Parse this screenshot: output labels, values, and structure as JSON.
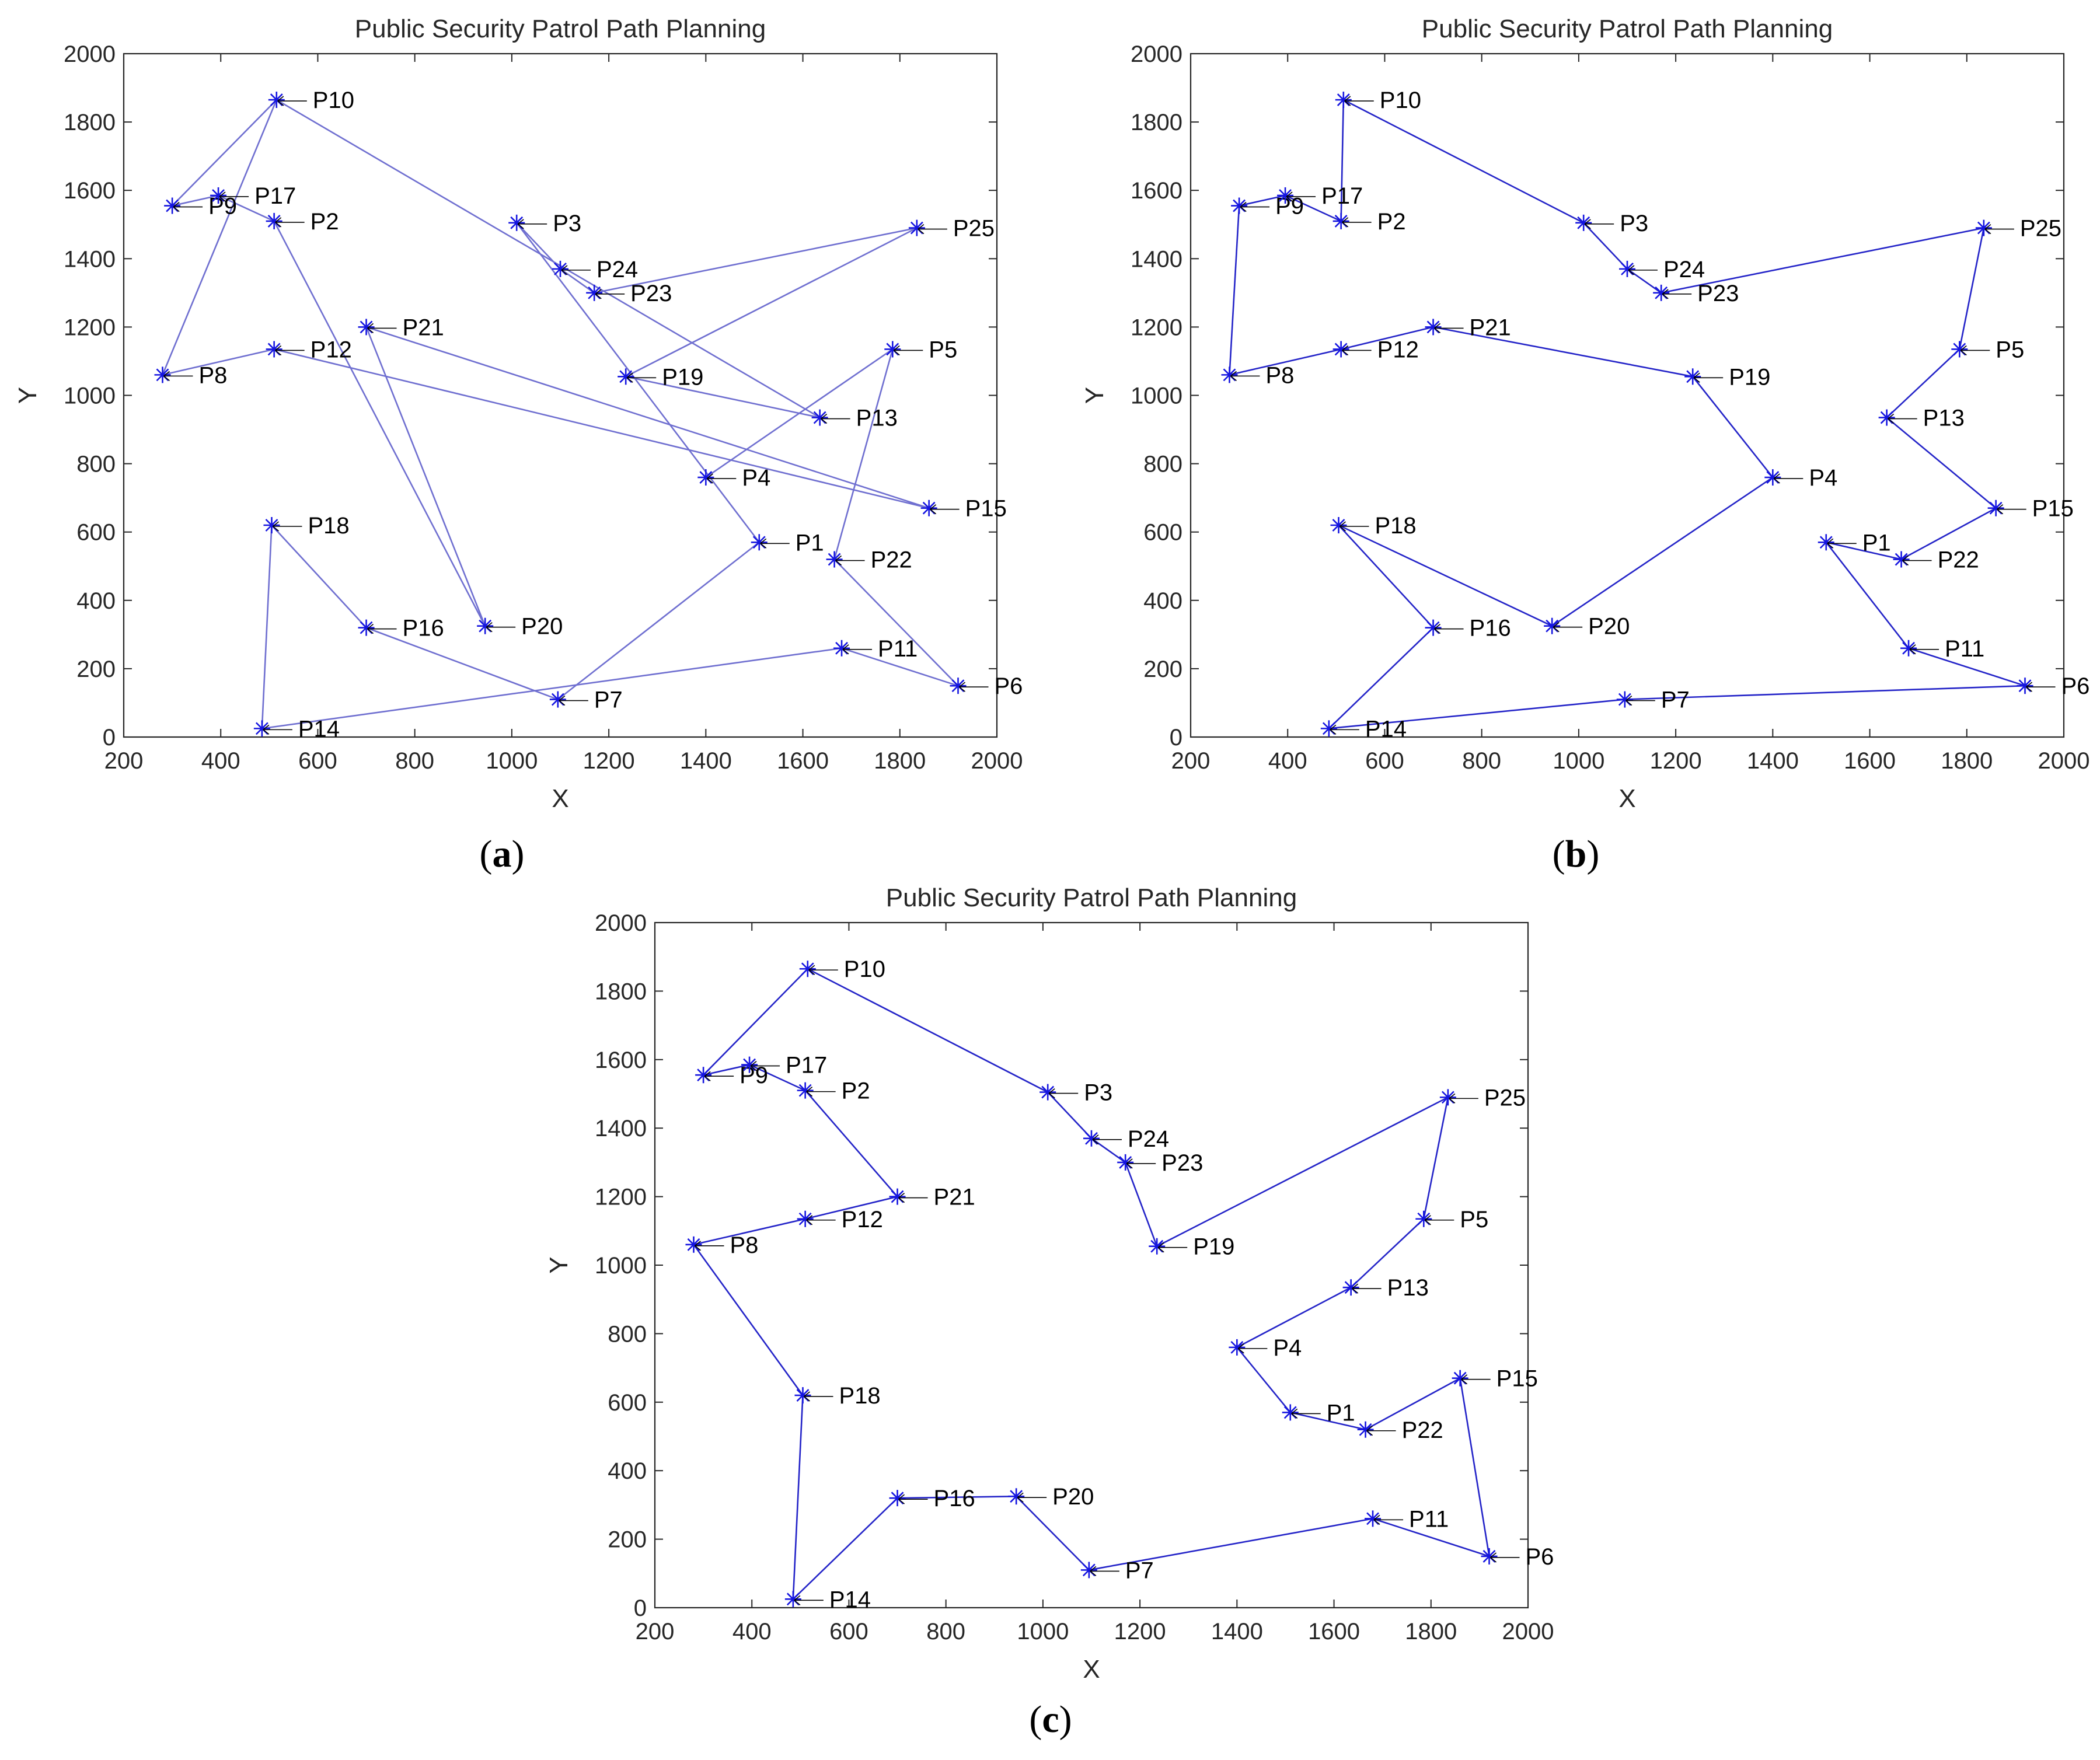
{
  "chart_data": [
    {
      "id": "a",
      "panel_label": "a",
      "type": "line",
      "title": "Public Security Patrol Path Planning",
      "xlabel": "X",
      "ylabel": "Y",
      "xlim": [
        200,
        2000
      ],
      "ylim": [
        0,
        2000
      ],
      "xticks": [
        200,
        400,
        600,
        800,
        1000,
        1200,
        1400,
        1600,
        1800,
        2000
      ],
      "yticks": [
        0,
        200,
        400,
        600,
        800,
        1000,
        1200,
        1400,
        1600,
        1800,
        2000
      ],
      "route": [
        "P10",
        "P9",
        "P17",
        "P2",
        "P20",
        "P21",
        "P15",
        "P12",
        "P8",
        "P10",
        "P13",
        "P19",
        "P25",
        "P23",
        "P24",
        "P3",
        "P1",
        "P7",
        "P16",
        "P18",
        "P14",
        "P11",
        "P6",
        "P22",
        "P5",
        "P4"
      ],
      "route_color": "#6f6fd0"
    },
    {
      "id": "b",
      "panel_label": "b",
      "type": "line",
      "title": "Public Security Patrol Path Planning",
      "xlabel": "X",
      "ylabel": "Y",
      "xlim": [
        200,
        2000
      ],
      "ylim": [
        0,
        2000
      ],
      "xticks": [
        200,
        400,
        600,
        800,
        1000,
        1200,
        1400,
        1600,
        1800,
        2000
      ],
      "yticks": [
        0,
        200,
        400,
        600,
        800,
        1000,
        1200,
        1400,
        1600,
        1800,
        2000
      ],
      "route": [
        "P10",
        "P3",
        "P24",
        "P23",
        "P25",
        "P5",
        "P13",
        "P15",
        "P22",
        "P1",
        "P11",
        "P6",
        "P7",
        "P14",
        "P16",
        "P18",
        "P20",
        "P4",
        "P19",
        "P21",
        "P12",
        "P8",
        "P9",
        "P17",
        "P2",
        "P10"
      ],
      "route_color": "#2424c8"
    },
    {
      "id": "c",
      "panel_label": "c",
      "type": "line",
      "title": "Public Security Patrol Path Planning",
      "xlabel": "X",
      "ylabel": "Y",
      "xlim": [
        200,
        2000
      ],
      "ylim": [
        0,
        2000
      ],
      "xticks": [
        200,
        400,
        600,
        800,
        1000,
        1200,
        1400,
        1600,
        1800,
        2000
      ],
      "yticks": [
        0,
        200,
        400,
        600,
        800,
        1000,
        1200,
        1400,
        1600,
        1800,
        2000
      ],
      "route": [
        "P10",
        "P3",
        "P24",
        "P23",
        "P19",
        "P25",
        "P5",
        "P13",
        "P4",
        "P1",
        "P22",
        "P15",
        "P6",
        "P11",
        "P7",
        "P20",
        "P16",
        "P14",
        "P18",
        "P8",
        "P12",
        "P21",
        "P2",
        "P17",
        "P9",
        "P10"
      ],
      "route_color": "#2424c8"
    }
  ],
  "points": [
    {
      "name": "P1",
      "x": 1510,
      "y": 570
    },
    {
      "name": "P2",
      "x": 510,
      "y": 1510
    },
    {
      "name": "P3",
      "x": 1010,
      "y": 1505
    },
    {
      "name": "P4",
      "x": 1400,
      "y": 760
    },
    {
      "name": "P5",
      "x": 1785,
      "y": 1135
    },
    {
      "name": "P6",
      "x": 1920,
      "y": 150
    },
    {
      "name": "P7",
      "x": 1095,
      "y": 110
    },
    {
      "name": "P8",
      "x": 280,
      "y": 1060
    },
    {
      "name": "P9",
      "x": 300,
      "y": 1555
    },
    {
      "name": "P10",
      "x": 515,
      "y": 1865
    },
    {
      "name": "P11",
      "x": 1680,
      "y": 260
    },
    {
      "name": "P12",
      "x": 510,
      "y": 1135
    },
    {
      "name": "P13",
      "x": 1635,
      "y": 935
    },
    {
      "name": "P14",
      "x": 485,
      "y": 25
    },
    {
      "name": "P15",
      "x": 1860,
      "y": 670
    },
    {
      "name": "P16",
      "x": 700,
      "y": 320
    },
    {
      "name": "P17",
      "x": 395,
      "y": 1585
    },
    {
      "name": "P18",
      "x": 505,
      "y": 620
    },
    {
      "name": "P19",
      "x": 1235,
      "y": 1055
    },
    {
      "name": "P20",
      "x": 945,
      "y": 325
    },
    {
      "name": "P21",
      "x": 700,
      "y": 1200
    },
    {
      "name": "P22",
      "x": 1665,
      "y": 520
    },
    {
      "name": "P23",
      "x": 1170,
      "y": 1300
    },
    {
      "name": "P24",
      "x": 1100,
      "y": 1370
    },
    {
      "name": "P25",
      "x": 1835,
      "y": 1490
    }
  ],
  "marker_color": "#1515e0"
}
